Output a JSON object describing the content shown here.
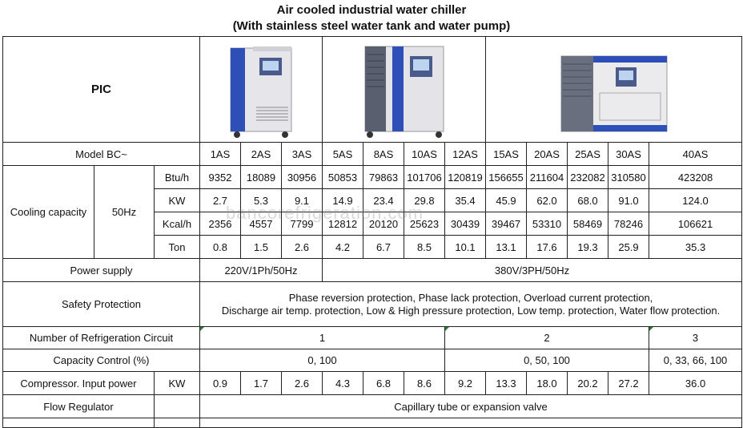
{
  "title_line1": "Air cooled industrial water chiller",
  "title_line2": "(With stainless steel water tank and water pump)",
  "pic_label": "PIC",
  "model_label": "Model BC~",
  "models": [
    "1AS",
    "2AS",
    "3AS",
    "5AS",
    "8AS",
    "10AS",
    "12AS",
    "15AS",
    "20AS",
    "25AS",
    "30AS",
    "40AS"
  ],
  "cooling_label": "Cooling capacity",
  "freq_label": "50Hz",
  "btu": {
    "unit": "Btu/h",
    "values": [
      "9352",
      "18089",
      "30956",
      "50853",
      "79863",
      "101706",
      "120819",
      "156655",
      "211604",
      "232082",
      "310580",
      "423208"
    ]
  },
  "kw": {
    "unit": "KW",
    "values": [
      "2.7",
      "5.3",
      "9.1",
      "14.9",
      "23.4",
      "29.8",
      "35.4",
      "45.9",
      "62.0",
      "68.0",
      "91.0",
      "124.0"
    ]
  },
  "kcal": {
    "unit": "Kcal/h",
    "values": [
      "2356",
      "4557",
      "7799",
      "12812",
      "20120",
      "25623",
      "30439",
      "39467",
      "53310",
      "58469",
      "78246",
      "106621"
    ]
  },
  "ton": {
    "unit": "Ton",
    "values": [
      "0.8",
      "1.5",
      "2.6",
      "4.2",
      "6.7",
      "8.5",
      "10.1",
      "13.1",
      "17.6",
      "19.3",
      "25.9",
      "35.3"
    ]
  },
  "power_label": "Power supply",
  "power_1ph": "220V/1Ph/50Hz",
  "power_3ph": "380V/3PH/50Hz",
  "safety_label": "Safety Protection",
  "safety_line1": "Phase reversion protection, Phase lack protection, Overload current protection,",
  "safety_line2": "Discharge air temp.  protection, Low & High pressure protection, Low temp.  protection, Water flow protection.",
  "circuit_label": "Number of Refrigeration Circuit",
  "circuit_values": [
    "1",
    "2",
    "3"
  ],
  "capacity_label": "Capacity Control (%)",
  "capacity_values": [
    "0, 100",
    "0, 50, 100",
    "0, 33, 66, 100"
  ],
  "compressor_label": "Compressor. Input power",
  "compressor_unit": "KW",
  "compressor_values": [
    "0.9",
    "1.7",
    "2.6",
    "4.3",
    "6.8",
    "8.6",
    "9.2",
    "13.3",
    "18.0",
    "20.2",
    "27.2",
    "36.0"
  ],
  "flow_label": "Flow Regulator",
  "flow_value": "Capillary tube or expansion valve",
  "watermark": "bancorefrigeration.com",
  "colors": {
    "panel_blue": "#2f4fb8",
    "cabinet": "#e8e8ea",
    "corner_mark": "#2e7d32"
  }
}
